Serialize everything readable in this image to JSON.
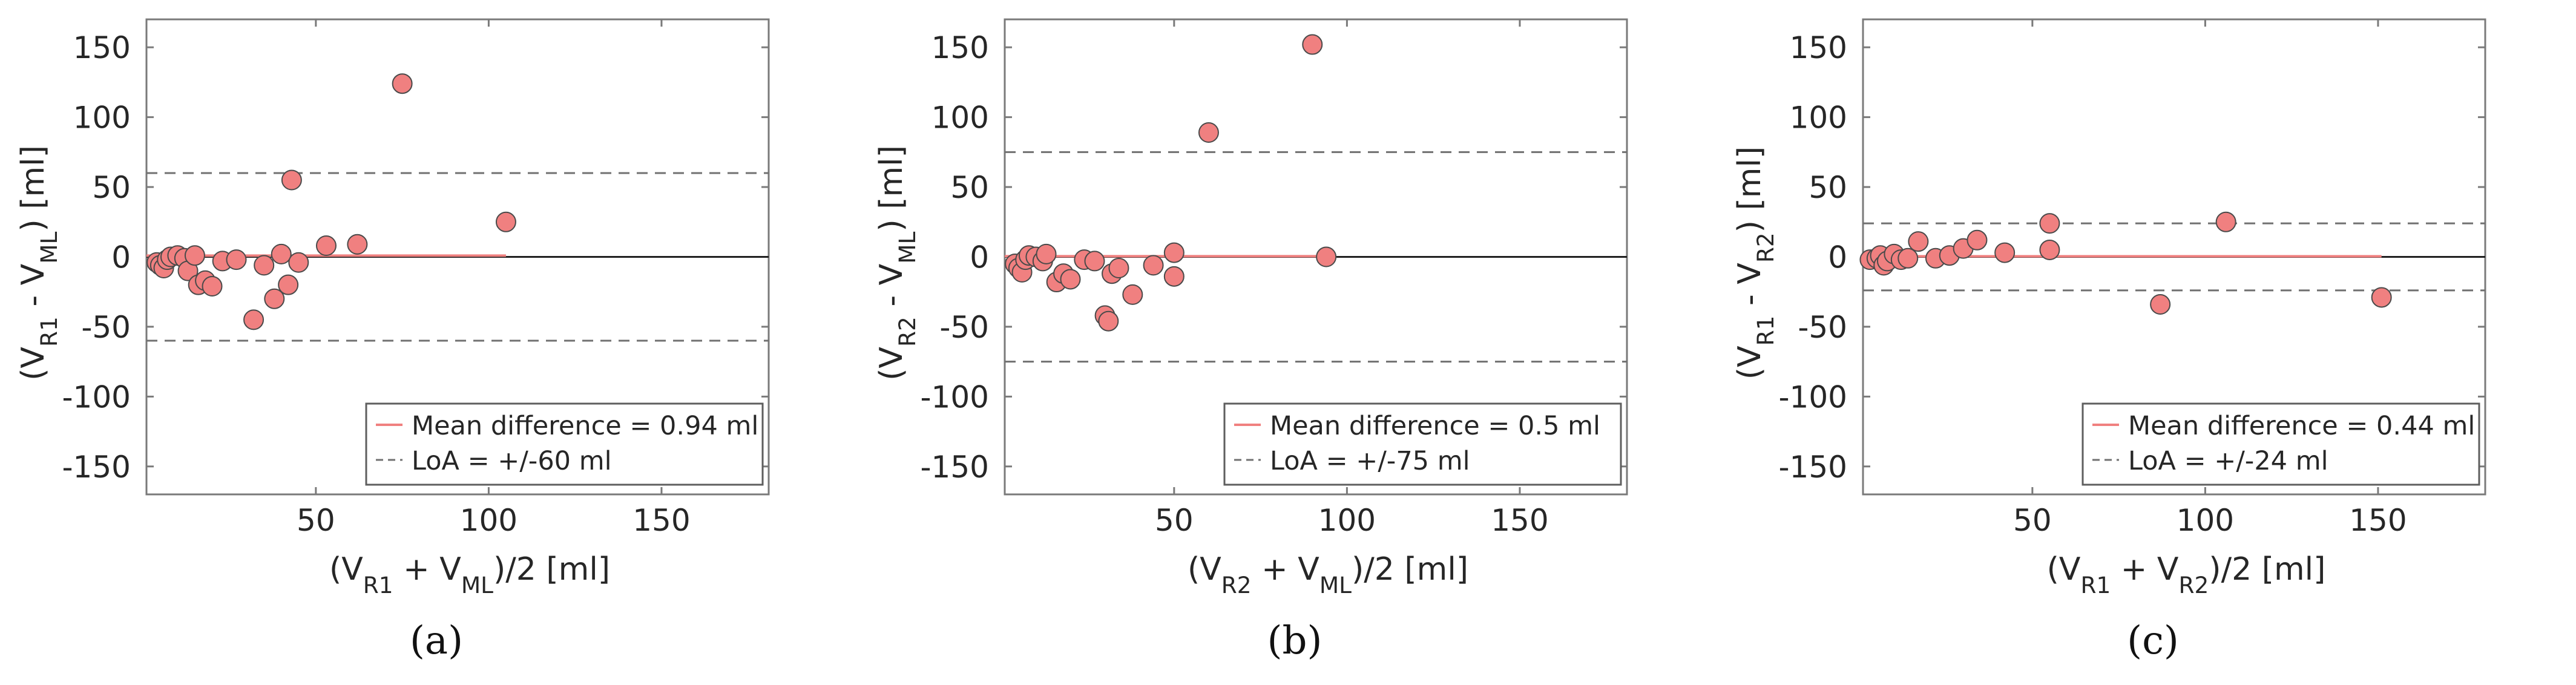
{
  "chart_data": [
    {
      "type": "scatter",
      "panel": "a",
      "caption": "(a)",
      "xlabel": {
        "prefix": "(V",
        "sub1": "R1",
        "mid": " + V",
        "sub2": "ML",
        "suffix": ")/2  [ml]"
      },
      "ylabel": {
        "prefix": "(V",
        "sub1": "R1",
        "mid": " - V",
        "sub2": "ML",
        "suffix": ")  [ml]"
      },
      "xlim": [
        1,
        181
      ],
      "ylim": [
        -170,
        170
      ],
      "xticks": [
        50,
        100,
        150
      ],
      "yticks": [
        -150,
        -100,
        -50,
        0,
        50,
        100,
        150
      ],
      "mean_diff": 0.94,
      "loa": 60,
      "zero_line": 0,
      "mean_line_x": [
        1,
        105
      ],
      "legend": {
        "mean_label": "Mean difference = 0.94 ml",
        "loa_label": "LoA = +/-60 ml"
      },
      "points": [
        [
          4,
          -4
        ],
        [
          5,
          -6
        ],
        [
          6,
          -8
        ],
        [
          7,
          -2
        ],
        [
          8,
          0
        ],
        [
          10,
          1
        ],
        [
          12,
          -1
        ],
        [
          13,
          -10
        ],
        [
          15,
          1
        ],
        [
          16,
          -20
        ],
        [
          18,
          -17
        ],
        [
          20,
          -21
        ],
        [
          23,
          -3
        ],
        [
          27,
          -2
        ],
        [
          32,
          -45
        ],
        [
          35,
          -6
        ],
        [
          38,
          -30
        ],
        [
          40,
          2
        ],
        [
          42,
          -20
        ],
        [
          43,
          55
        ],
        [
          45,
          -4
        ],
        [
          53,
          8
        ],
        [
          62,
          9
        ],
        [
          75,
          124
        ],
        [
          105,
          25
        ]
      ],
      "colors": {
        "marker_fill": "#f08080",
        "marker_edge": "#4a4a4a",
        "mean_line": "#f0807f",
        "loa_line": "#707070",
        "zero_line": "#202020",
        "axis": "#7a7a7a",
        "text": "#262626"
      }
    },
    {
      "type": "scatter",
      "panel": "b",
      "caption": "(b)",
      "xlabel": {
        "prefix": "(V",
        "sub1": "R2",
        "mid": " + V",
        "sub2": "ML",
        "suffix": ")/2  [ml]"
      },
      "ylabel": {
        "prefix": "(V",
        "sub1": "R2",
        "mid": " - V",
        "sub2": "ML",
        "suffix": ")  [ml]"
      },
      "xlim": [
        1,
        181
      ],
      "ylim": [
        -170,
        170
      ],
      "xticks": [
        50,
        100,
        150
      ],
      "yticks": [
        -150,
        -100,
        -50,
        0,
        50,
        100,
        150
      ],
      "mean_diff": 0.5,
      "loa": 75,
      "zero_line": 0,
      "mean_line_x": [
        1,
        94
      ],
      "legend": {
        "mean_label": "Mean difference = 0.5 ml",
        "loa_label": "LoA = +/-75 ml"
      },
      "points": [
        [
          4,
          -5
        ],
        [
          5,
          -8
        ],
        [
          6,
          -11
        ],
        [
          7,
          -2
        ],
        [
          8,
          1
        ],
        [
          10,
          0
        ],
        [
          12,
          -3
        ],
        [
          13,
          2
        ],
        [
          16,
          -18
        ],
        [
          18,
          -12
        ],
        [
          20,
          -16
        ],
        [
          24,
          -2
        ],
        [
          27,
          -3
        ],
        [
          30,
          -42
        ],
        [
          31,
          -46
        ],
        [
          32,
          -12
        ],
        [
          34,
          -8
        ],
        [
          38,
          -27
        ],
        [
          44,
          -6
        ],
        [
          50,
          3
        ],
        [
          50,
          -14
        ],
        [
          60,
          89
        ],
        [
          90,
          152
        ],
        [
          94,
          0
        ]
      ],
      "colors": {
        "marker_fill": "#f08080",
        "marker_edge": "#4a4a4a",
        "mean_line": "#f0807f",
        "loa_line": "#707070",
        "zero_line": "#202020",
        "axis": "#7a7a7a",
        "text": "#262626"
      }
    },
    {
      "type": "scatter",
      "panel": "c",
      "caption": "(c)",
      "xlabel": {
        "prefix": "(V",
        "sub1": "R1",
        "mid": " + V",
        "sub2": "R2",
        "suffix": ")/2  [ml]"
      },
      "ylabel": {
        "prefix": "(V",
        "sub1": "R1",
        "mid": " - V",
        "sub2": "R2",
        "suffix": ")  [ml]"
      },
      "xlim": [
        1,
        181
      ],
      "ylim": [
        -170,
        170
      ],
      "xticks": [
        50,
        100,
        150
      ],
      "yticks": [
        -150,
        -100,
        -50,
        0,
        50,
        100,
        150
      ],
      "mean_diff": 0.44,
      "loa": 24,
      "zero_line": 0,
      "mean_line_x": [
        1,
        151
      ],
      "legend": {
        "mean_label": "Mean difference = 0.44 ml",
        "loa_label": "LoA = +/-24 ml"
      },
      "points": [
        [
          3,
          -2
        ],
        [
          5,
          -1
        ],
        [
          6,
          1
        ],
        [
          7,
          -6
        ],
        [
          8,
          -3
        ],
        [
          10,
          2
        ],
        [
          12,
          -2
        ],
        [
          14,
          -1
        ],
        [
          17,
          11
        ],
        [
          22,
          -1
        ],
        [
          26,
          1
        ],
        [
          30,
          6
        ],
        [
          34,
          12
        ],
        [
          42,
          3
        ],
        [
          55,
          24
        ],
        [
          55,
          5
        ],
        [
          87,
          -34
        ],
        [
          106,
          25
        ],
        [
          151,
          -29
        ]
      ],
      "colors": {
        "marker_fill": "#f08080",
        "marker_edge": "#4a4a4a",
        "mean_line": "#f0807f",
        "loa_line": "#707070",
        "zero_line": "#202020",
        "axis": "#7a7a7a",
        "text": "#262626"
      }
    }
  ]
}
